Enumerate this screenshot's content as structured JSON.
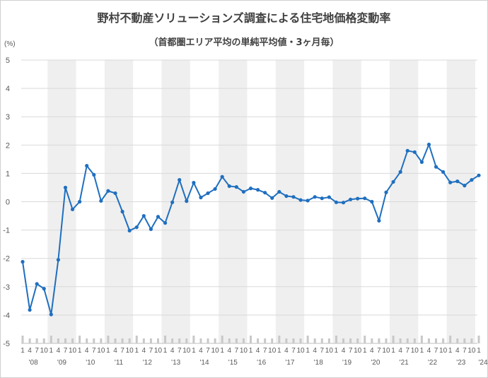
{
  "chart_data": {
    "type": "line",
    "title": "野村不動産ソリューションズ調査による住宅地価格変動率",
    "subtitle": "（首都圏エリア平均の単純平均値・3ヶ月毎）",
    "ylabel": "(%)",
    "ylim": [
      -5,
      5
    ],
    "yticks": [
      "5",
      "4",
      "3",
      "2",
      "1",
      "0",
      "-1",
      "-2",
      "-3",
      "-4",
      "-5"
    ],
    "quarter_labels": [
      "1",
      "4",
      "7",
      "10"
    ],
    "last_quarter_label": "1",
    "years": [
      "'08",
      "'09",
      "'10",
      "'11",
      "'12",
      "'13",
      "'14",
      "'15",
      "'16",
      "'17",
      "'18",
      "'19",
      "'20",
      "'21",
      "'22",
      "'23",
      "'24"
    ],
    "line_color": "#1f6fbf",
    "band_color": "#efefef",
    "series": [
      {
        "values": [
          -2.12,
          -3.82,
          -2.9,
          -3.07,
          -3.98,
          -2.05,
          0.5,
          -0.27,
          0.0,
          1.27,
          0.95,
          0.03,
          0.38,
          0.3,
          -0.35,
          -1.02,
          -0.9,
          -0.5,
          -0.97,
          -0.53,
          -0.75,
          -0.02,
          0.77,
          0.02,
          0.67,
          0.15,
          0.3,
          0.45,
          0.88,
          0.55,
          0.52,
          0.35,
          0.47,
          0.42,
          0.32,
          0.13,
          0.35,
          0.2,
          0.17,
          0.06,
          0.04,
          0.17,
          0.12,
          0.16,
          -0.02,
          -0.03,
          0.08,
          0.11,
          0.12,
          0.0,
          -0.67,
          0.33,
          0.7,
          1.05,
          1.8,
          1.75,
          1.4,
          2.02,
          1.23,
          1.05,
          0.68,
          0.72,
          0.57,
          0.77,
          0.93
        ]
      }
    ]
  }
}
